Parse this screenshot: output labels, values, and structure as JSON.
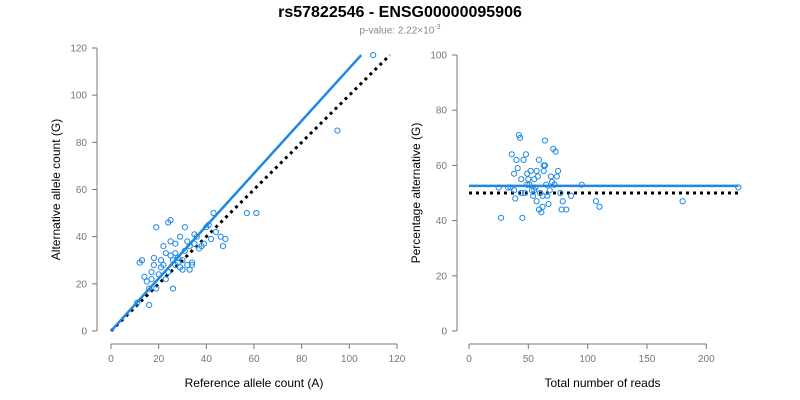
{
  "header": {
    "title": "rs57822546 - ENSG00000095906",
    "subtitle_prefix": "p-value: 2.22×10",
    "subtitle_exp": "-3"
  },
  "colors": {
    "accent": "#1e88e5",
    "reference": "#000000",
    "axis": "#777777"
  },
  "chart_data": [
    {
      "type": "scatter",
      "xlabel": "Reference allele count (A)",
      "ylabel": "Alternative allele count (G)",
      "xlim": [
        0,
        120
      ],
      "ylim": [
        0,
        120
      ],
      "xticks": [
        0,
        20,
        40,
        60,
        80,
        100,
        120
      ],
      "yticks": [
        0,
        20,
        40,
        60,
        80,
        100,
        120
      ],
      "points": [
        [
          11,
          12
        ],
        [
          12,
          29
        ],
        [
          13,
          30
        ],
        [
          14,
          23
        ],
        [
          15,
          21
        ],
        [
          16,
          18
        ],
        [
          16,
          11
        ],
        [
          17,
          22
        ],
        [
          17,
          25
        ],
        [
          18,
          28
        ],
        [
          18,
          31
        ],
        [
          19,
          18
        ],
        [
          19,
          44
        ],
        [
          20,
          24
        ],
        [
          21,
          27
        ],
        [
          21,
          30
        ],
        [
          22,
          36
        ],
        [
          22,
          28
        ],
        [
          23,
          22
        ],
        [
          23,
          33
        ],
        [
          24,
          25
        ],
        [
          24,
          46
        ],
        [
          25,
          32
        ],
        [
          25,
          38
        ],
        [
          25,
          47
        ],
        [
          26,
          30
        ],
        [
          26,
          18
        ],
        [
          27,
          28
        ],
        [
          27,
          37
        ],
        [
          27,
          33
        ],
        [
          28,
          29
        ],
        [
          28,
          31
        ],
        [
          29,
          27
        ],
        [
          29,
          40
        ],
        [
          30,
          26
        ],
        [
          30,
          30
        ],
        [
          31,
          34
        ],
        [
          31,
          44
        ],
        [
          32,
          38
        ],
        [
          32,
          28
        ],
        [
          33,
          26
        ],
        [
          33,
          36
        ],
        [
          34,
          29
        ],
        [
          34,
          28
        ],
        [
          35,
          41
        ],
        [
          35,
          37
        ],
        [
          36,
          40
        ],
        [
          37,
          35
        ],
        [
          38,
          36
        ],
        [
          39,
          37
        ],
        [
          40,
          44
        ],
        [
          41,
          45
        ],
        [
          42,
          39
        ],
        [
          43,
          50
        ],
        [
          44,
          42
        ],
        [
          46,
          40
        ],
        [
          47,
          36
        ],
        [
          48,
          39
        ],
        [
          57,
          50
        ],
        [
          61,
          50
        ],
        [
          95,
          85
        ],
        [
          110,
          117
        ]
      ],
      "fit_line": [
        [
          0,
          0
        ],
        [
          105,
          117
        ]
      ],
      "reference_line": [
        [
          0,
          0
        ],
        [
          117,
          117
        ]
      ]
    },
    {
      "type": "scatter",
      "xlabel": "Total number of reads",
      "ylabel": "Percentage alternative (G)",
      "xlim": [
        0,
        225
      ],
      "ylim": [
        0,
        100
      ],
      "xticks": [
        0,
        50,
        100,
        150,
        200
      ],
      "yticks": [
        0,
        20,
        40,
        60,
        80,
        100
      ],
      "points": [
        [
          25,
          52
        ],
        [
          27,
          41
        ],
        [
          33,
          52
        ],
        [
          35,
          52
        ],
        [
          36,
          64
        ],
        [
          38,
          57
        ],
        [
          38,
          51
        ],
        [
          39,
          48
        ],
        [
          40,
          62
        ],
        [
          41,
          59
        ],
        [
          42,
          71
        ],
        [
          43,
          70
        ],
        [
          44,
          55
        ],
        [
          44,
          50
        ],
        [
          45,
          41
        ],
        [
          46,
          62
        ],
        [
          47,
          50
        ],
        [
          48,
          64
        ],
        [
          49,
          57
        ],
        [
          49,
          53
        ],
        [
          50,
          55
        ],
        [
          51,
          53
        ],
        [
          52,
          58
        ],
        [
          53,
          51
        ],
        [
          54,
          49
        ],
        [
          55,
          55
        ],
        [
          55,
          51
        ],
        [
          56,
          52
        ],
        [
          57,
          47
        ],
        [
          57,
          58
        ],
        [
          58,
          56
        ],
        [
          59,
          62
        ],
        [
          59,
          44
        ],
        [
          60,
          50
        ],
        [
          61,
          43
        ],
        [
          62,
          45
        ],
        [
          62,
          49
        ],
        [
          63,
          58
        ],
        [
          63,
          60
        ],
        [
          64,
          60
        ],
        [
          64,
          69
        ],
        [
          65,
          53
        ],
        [
          66,
          49
        ],
        [
          67,
          46
        ],
        [
          68,
          51
        ],
        [
          69,
          56
        ],
        [
          70,
          54
        ],
        [
          71,
          66
        ],
        [
          72,
          53
        ],
        [
          73,
          65
        ],
        [
          74,
          56
        ],
        [
          75,
          58
        ],
        [
          77,
          50
        ],
        [
          78,
          44
        ],
        [
          79,
          47
        ],
        [
          82,
          44
        ],
        [
          86,
          49
        ],
        [
          95,
          53
        ],
        [
          107,
          47
        ],
        [
          110,
          45
        ],
        [
          180,
          47
        ],
        [
          227,
          52
        ]
      ],
      "fit_line": [
        [
          0,
          52.6
        ],
        [
          227,
          52.6
        ]
      ],
      "reference_line": [
        [
          0,
          50
        ],
        [
          227,
          50
        ]
      ]
    }
  ]
}
